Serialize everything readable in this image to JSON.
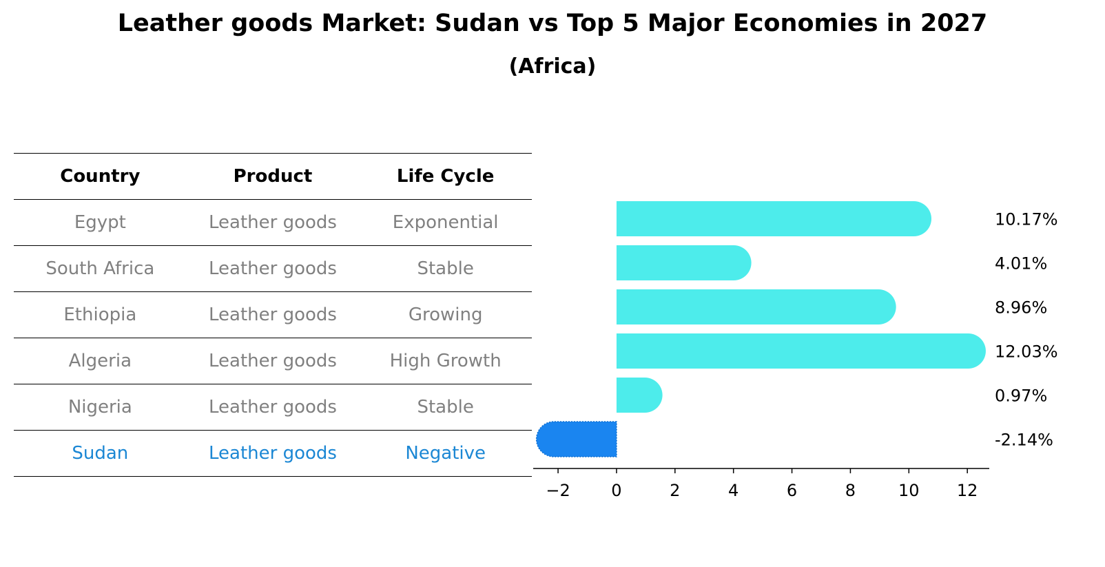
{
  "title": "Leather goods Market: Sudan vs Top 5 Major Economies in 2027",
  "subtitle": "(Africa)",
  "table": {
    "headers": [
      "Country",
      "Product",
      "Life Cycle"
    ],
    "rows": [
      [
        "Egypt",
        "Leather goods",
        "Exponential"
      ],
      [
        "South Africa",
        "Leather goods",
        "Stable"
      ],
      [
        "Ethiopia",
        "Leather goods",
        "Growing"
      ],
      [
        "Algeria",
        "Leather goods",
        "High Growth"
      ],
      [
        "Nigeria",
        "Leather goods",
        "Stable"
      ],
      [
        "Sudan",
        "Leather goods",
        "Negative"
      ]
    ]
  },
  "colors": {
    "positive_bar": "#4deceb",
    "negative_bar": "#1a85f0",
    "highlight_text": "#1b87d4",
    "row_text": "#808080"
  },
  "chart_data": {
    "type": "bar",
    "orientation": "horizontal",
    "categories": [
      "Egypt",
      "South Africa",
      "Ethiopia",
      "Algeria",
      "Nigeria",
      "Sudan"
    ],
    "values": [
      10.17,
      4.01,
      8.96,
      12.03,
      0.97,
      -2.14
    ],
    "value_labels": [
      "10.17%",
      "4.01%",
      "8.96%",
      "12.03%",
      "0.97%",
      "-2.14%"
    ],
    "xlim": [
      -2.85,
      12.75
    ],
    "xticks": [
      -2,
      0,
      2,
      4,
      6,
      8,
      10,
      12
    ],
    "xtick_labels": [
      "−2",
      "0",
      "2",
      "4",
      "6",
      "8",
      "10",
      "12"
    ],
    "grid": false,
    "legend": "none",
    "title": "",
    "xlabel": "",
    "ylabel": ""
  }
}
